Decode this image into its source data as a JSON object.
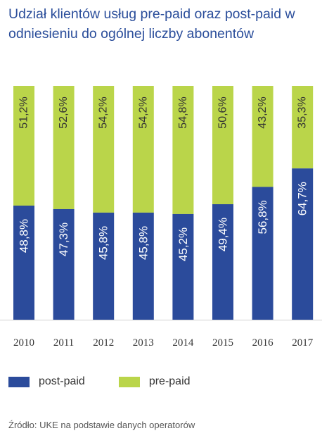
{
  "title": "Udział klientów usług pre-paid oraz post-paid w odniesieniu do ogólnej liczby abonentów",
  "source": "Źródło: UKE na podstawie danych operatorów",
  "chart_data": {
    "type": "bar",
    "stacked": true,
    "title": "Udział klientów usług pre-paid oraz post-paid w odniesieniu do ogólnej liczby abonentów",
    "categories": [
      "2010",
      "2011",
      "2012",
      "2013",
      "2014",
      "2015",
      "2016",
      "2017"
    ],
    "ylim": [
      0,
      100
    ],
    "grid": false,
    "legend_position": "bottom-left",
    "series": [
      {
        "name": "post-paid",
        "color": "#2b4b9b",
        "values": [
          48.8,
          47.3,
          45.8,
          45.8,
          45.2,
          49.4,
          56.8,
          64.7
        ],
        "labels": [
          "48,8%",
          "47,3%",
          "45,8%",
          "45,8%",
          "45,2%",
          "49,4%",
          "56,8%",
          "64,7%"
        ]
      },
      {
        "name": "pre-paid",
        "color": "#bad54a",
        "values": [
          51.2,
          52.6,
          54.2,
          54.2,
          54.8,
          50.6,
          43.2,
          35.3
        ],
        "labels": [
          "51,2%",
          "52,6%",
          "54,2%",
          "54,2%",
          "54,8%",
          "50,6%",
          "43,2%",
          "35,3%"
        ]
      }
    ]
  }
}
